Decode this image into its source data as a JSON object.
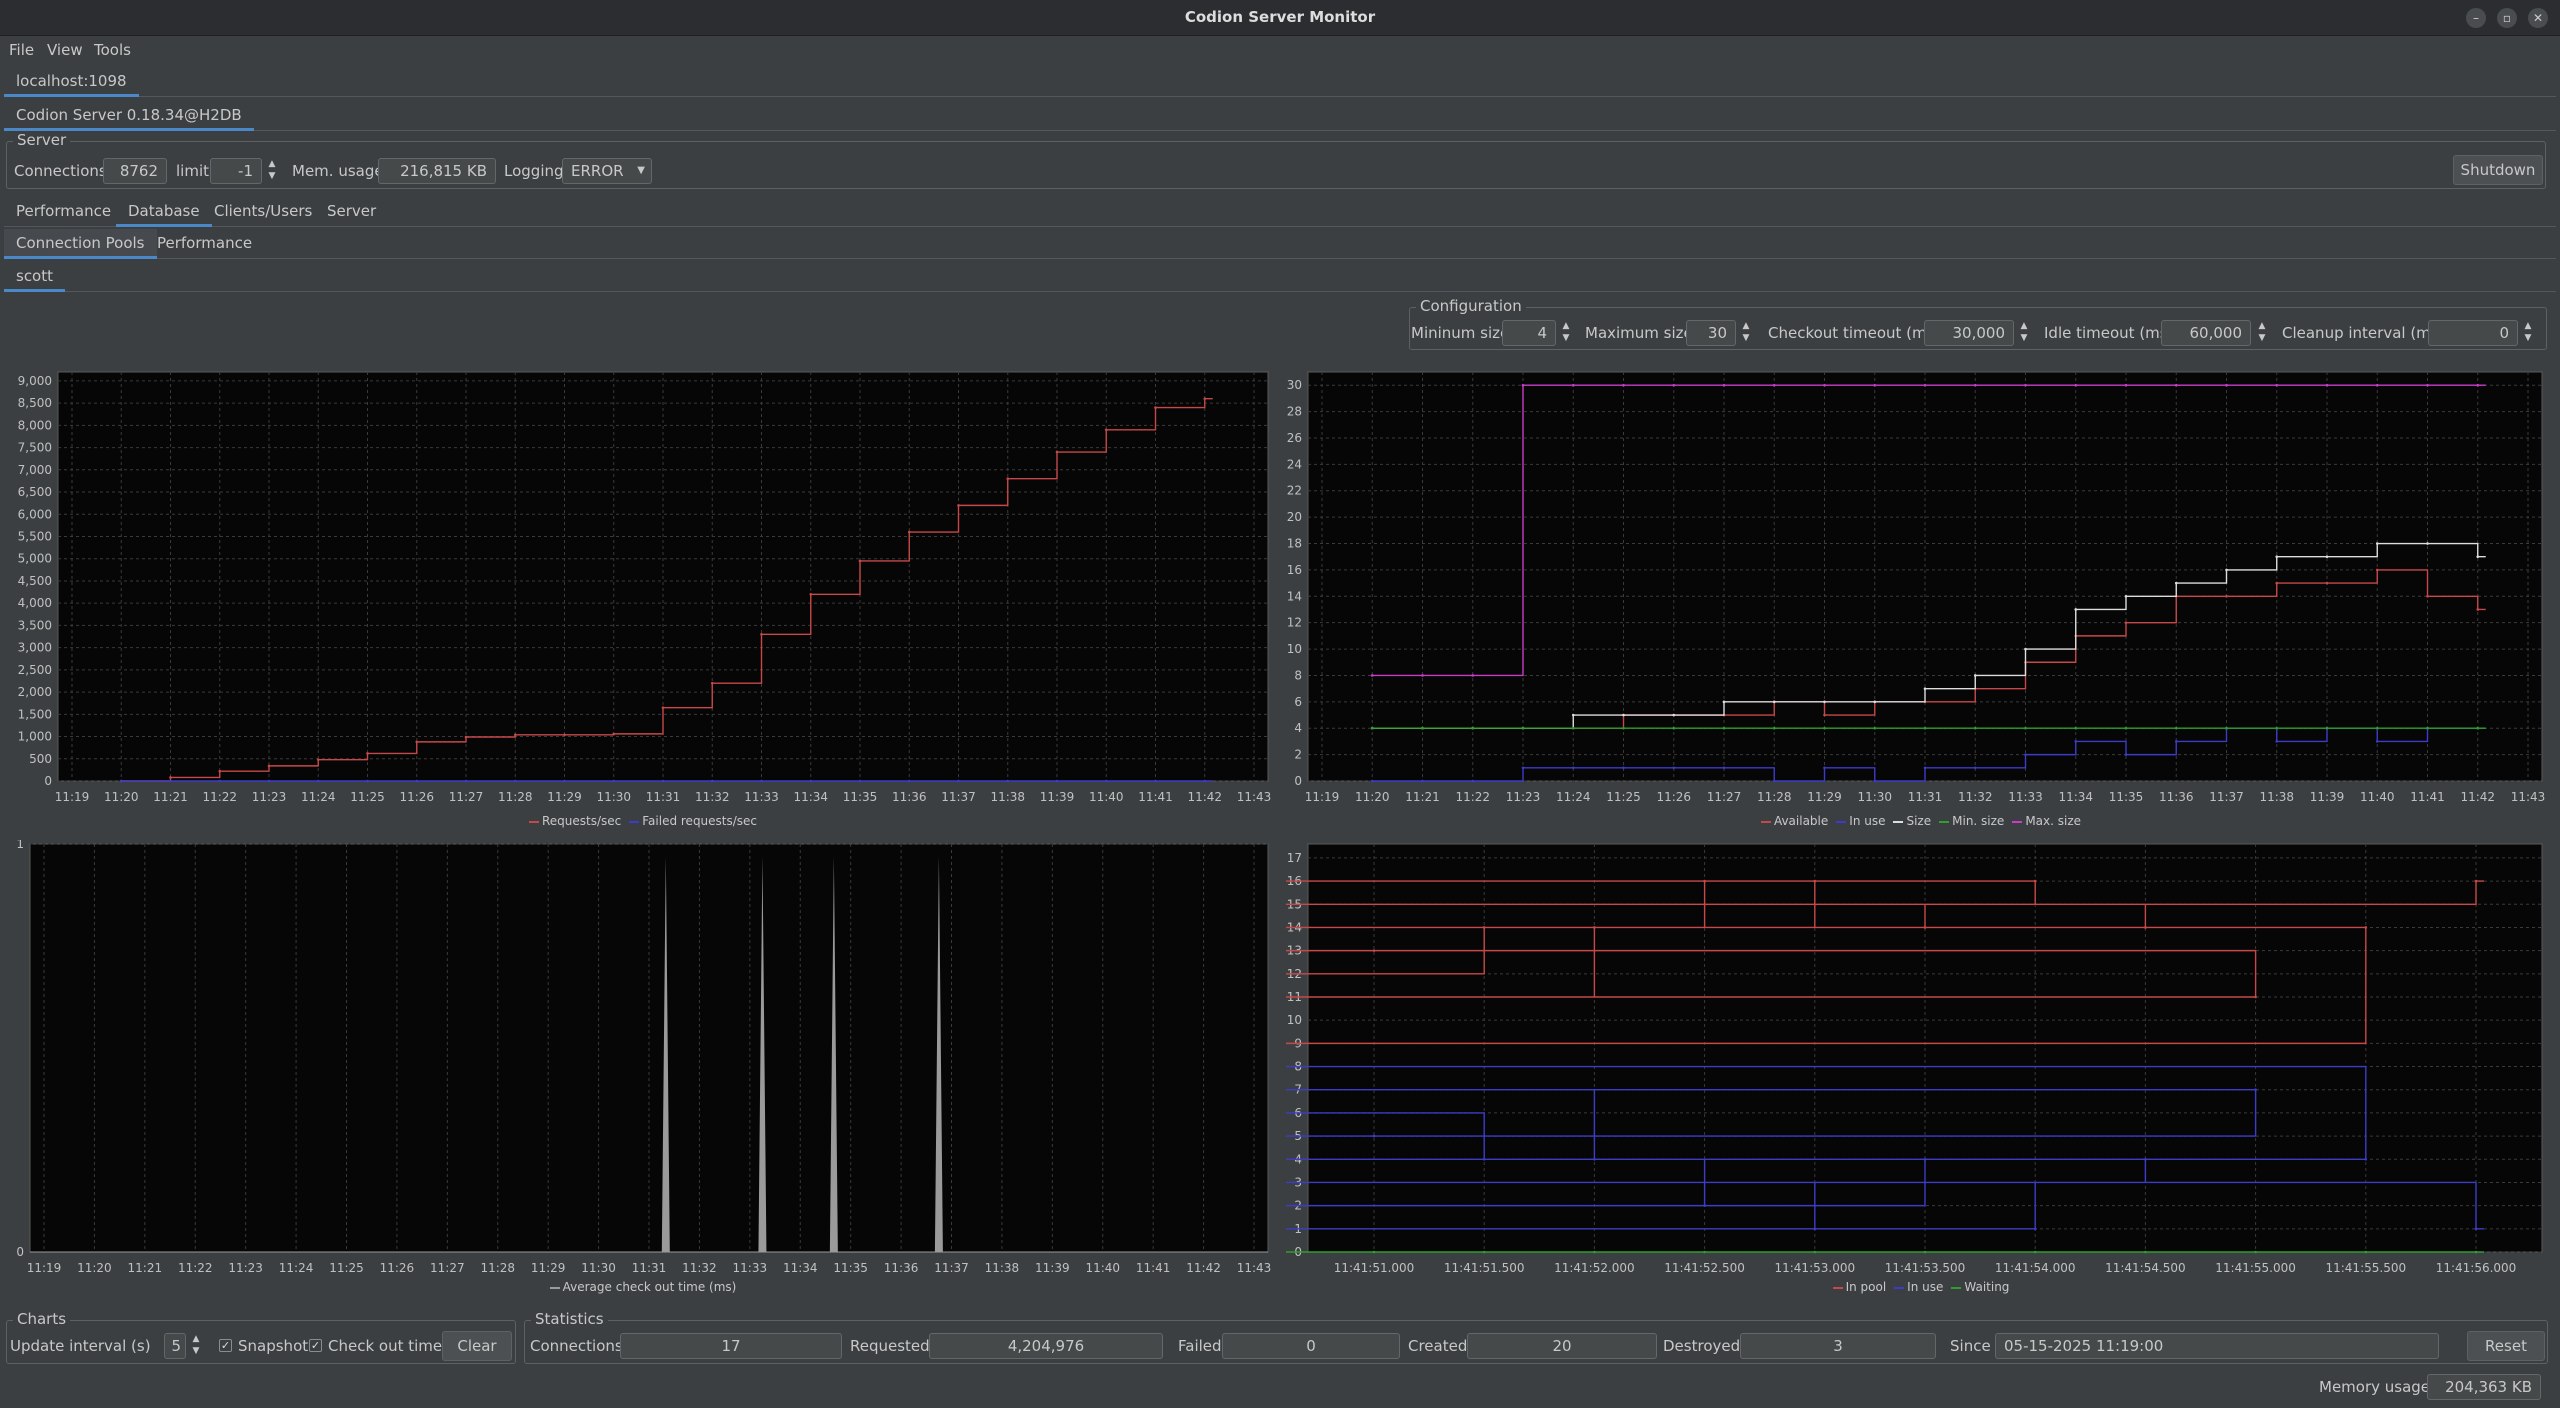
{
  "window": {
    "title": "Codion Server Monitor"
  },
  "menu": [
    "File",
    "View",
    "Tools"
  ],
  "host_tab": "localhost:1098",
  "server_tab": "Codion Server 0.18.34@H2DB",
  "server": {
    "group_label": "Server",
    "connections_label": "Connections",
    "connections": "8762",
    "limit_label": "limit",
    "limit": "-1",
    "mem_label": "Mem. usage",
    "mem": "216,815 KB",
    "logging_label": "Logging",
    "logging": "ERROR",
    "shutdown": "Shutdown"
  },
  "main_tabs": [
    "Performance",
    "Database",
    "Clients/Users",
    "Server"
  ],
  "db_tabs": [
    "Connection Pools",
    "Performance"
  ],
  "pool_tab": "scott",
  "config": {
    "group_label": "Configuration",
    "min_label": "Mininum size",
    "min": "4",
    "max_label": "Maximum size",
    "max": "30",
    "checkout_label": "Checkout timeout (ms)",
    "checkout": "30,000",
    "idle_label": "Idle timeout (ms)",
    "idle": "60,000",
    "cleanup_label": "Cleanup interval (ms)",
    "cleanup": "0"
  },
  "colors": {
    "red": "#c74848",
    "blue": "#3c3cc8",
    "white": "#dddddd",
    "green": "#2e9e2e",
    "magenta": "#c83cc8",
    "gray": "#9a9a9a",
    "plot_bg": "#060606",
    "grid": "#3a3a3a"
  },
  "chart_data": [
    {
      "type": "line",
      "x_ticks": [
        "11:19",
        "11:20",
        "11:21",
        "11:22",
        "11:23",
        "11:24",
        "11:25",
        "11:26",
        "11:27",
        "11:28",
        "11:29",
        "11:30",
        "11:31",
        "11:32",
        "11:33",
        "11:34",
        "11:35",
        "11:36",
        "11:37",
        "11:38",
        "11:39",
        "11:40",
        "11:41",
        "11:42",
        "11:43"
      ],
      "ylim": [
        0,
        9200
      ],
      "y_ticks": [
        "0",
        "500",
        "1,000",
        "1,500",
        "2,000",
        "2,500",
        "3,000",
        "3,500",
        "4,000",
        "4,500",
        "5,000",
        "5,500",
        "6,000",
        "6,500",
        "7,000",
        "7,500",
        "8,000",
        "8,500",
        "9,000"
      ],
      "x": [
        "11:20",
        "11:21",
        "11:22",
        "11:23",
        "11:24",
        "11:25",
        "11:26",
        "11:27",
        "11:28",
        "11:29",
        "11:30",
        "11:31",
        "11:32",
        "11:33",
        "11:34",
        "11:35",
        "11:36",
        "11:37",
        "11:38",
        "11:39",
        "11:40",
        "11:41",
        "11:42"
      ],
      "series": [
        {
          "name": "Requests/sec",
          "color": "red",
          "values": [
            0,
            80,
            220,
            340,
            480,
            620,
            880,
            990,
            1040,
            1040,
            1060,
            1650,
            2200,
            3300,
            4200,
            4950,
            5600,
            6200,
            6800,
            7400,
            7900,
            8400,
            8600
          ]
        },
        {
          "name": "Failed requests/sec",
          "color": "blue",
          "values": [
            0,
            0,
            0,
            0,
            0,
            0,
            0,
            0,
            0,
            0,
            0,
            0,
            0,
            0,
            0,
            0,
            0,
            0,
            0,
            0,
            0,
            0,
            0
          ]
        }
      ]
    },
    {
      "type": "line",
      "x_ticks": [
        "11:19",
        "11:20",
        "11:21",
        "11:22",
        "11:23",
        "11:24",
        "11:25",
        "11:26",
        "11:27",
        "11:28",
        "11:29",
        "11:30",
        "11:31",
        "11:32",
        "11:33",
        "11:34",
        "11:35",
        "11:36",
        "11:37",
        "11:38",
        "11:39",
        "11:40",
        "11:41",
        "11:42",
        "11:43"
      ],
      "ylim": [
        0,
        31
      ],
      "y_ticks": [
        "0",
        "2",
        "4",
        "6",
        "8",
        "10",
        "12",
        "14",
        "16",
        "18",
        "20",
        "22",
        "24",
        "26",
        "28",
        "30"
      ],
      "x": [
        "11:20",
        "11:21",
        "11:22",
        "11:23",
        "11:24",
        "11:25",
        "11:26",
        "11:27",
        "11:28",
        "11:29",
        "11:30",
        "11:31",
        "11:32",
        "11:33",
        "11:34",
        "11:35",
        "11:36",
        "11:37",
        "11:38",
        "11:39",
        "11:40",
        "11:41",
        "11:42"
      ],
      "series": [
        {
          "name": "Available",
          "color": "red",
          "values": [
            4,
            4,
            4,
            4,
            4,
            5,
            5,
            5,
            6,
            5,
            6,
            6,
            7,
            9,
            11,
            12,
            14,
            14,
            15,
            15,
            16,
            14,
            13
          ]
        },
        {
          "name": "In use",
          "color": "blue",
          "values": [
            0,
            0,
            0,
            1,
            1,
            1,
            1,
            1,
            0,
            1,
            0,
            1,
            1,
            2,
            3,
            2,
            3,
            4,
            3,
            4,
            3,
            4,
            4
          ]
        },
        {
          "name": "Size",
          "color": "white",
          "values": [
            4,
            4,
            4,
            4,
            5,
            5,
            5,
            6,
            6,
            6,
            6,
            7,
            8,
            10,
            13,
            14,
            15,
            16,
            17,
            17,
            18,
            18,
            17
          ]
        },
        {
          "name": "Min. size",
          "color": "green",
          "values": [
            4,
            4,
            4,
            4,
            4,
            4,
            4,
            4,
            4,
            4,
            4,
            4,
            4,
            4,
            4,
            4,
            4,
            4,
            4,
            4,
            4,
            4,
            4
          ]
        },
        {
          "name": "Max. size",
          "color": "magenta",
          "values": [
            8,
            8,
            8,
            30,
            30,
            30,
            30,
            30,
            30,
            30,
            30,
            30,
            30,
            30,
            30,
            30,
            30,
            30,
            30,
            30,
            30,
            30,
            30
          ]
        }
      ]
    },
    {
      "type": "area",
      "x_ticks": [
        "11:19",
        "11:20",
        "11:21",
        "11:22",
        "11:23",
        "11:24",
        "11:25",
        "11:26",
        "11:27",
        "11:28",
        "11:29",
        "11:30",
        "11:31",
        "11:32",
        "11:33",
        "11:34",
        "11:35",
        "11:36",
        "11:37",
        "11:38",
        "11:39",
        "11:40",
        "11:41",
        "11:42",
        "11:43"
      ],
      "ylim": [
        0,
        1
      ],
      "y_ticks": [
        "0",
        "1"
      ],
      "spikes": [
        {
          "x": "11:31:20",
          "y": 0.97
        },
        {
          "x": "11:33:15",
          "y": 0.97
        },
        {
          "x": "11:34:40",
          "y": 0.97
        },
        {
          "x": "11:36:45",
          "y": 0.97
        }
      ],
      "series": [
        {
          "name": "Average check out time (ms)",
          "color": "gray"
        }
      ]
    },
    {
      "type": "line",
      "x_ticks": [
        "11:41:51.000",
        "11:41:51.500",
        "11:41:52.000",
        "11:41:52.500",
        "11:41:53.000",
        "11:41:53.500",
        "11:41:54.000",
        "11:41:54.500",
        "11:41:55.000",
        "11:41:55.500",
        "11:41:56.000"
      ],
      "ylim": [
        0,
        17.6
      ],
      "y_ticks": [
        "0",
        "1",
        "2",
        "3",
        "4",
        "5",
        "6",
        "7",
        "8",
        "9",
        "10",
        "11",
        "12",
        "13",
        "14",
        "15",
        "16",
        "17"
      ],
      "x": [
        "11:41:51.000",
        "11:41:51.250",
        "11:41:51.500",
        "11:41:51.750",
        "11:41:52.000",
        "11:41:52.250",
        "11:41:52.500",
        "11:41:52.750",
        "11:41:53.000",
        "11:41:53.250",
        "11:41:53.500",
        "11:41:53.750",
        "11:41:54.000",
        "11:41:54.250",
        "11:41:54.500",
        "11:41:54.750",
        "11:41:55.000",
        "11:41:55.250",
        "11:41:55.500",
        "11:41:55.750",
        "11:41:56.000"
      ],
      "series": [
        {
          "name": "In pool",
          "color": "red",
          "values": [
            13,
            12,
            14,
            11,
            14,
            14,
            16,
            14,
            16,
            15,
            14,
            15,
            16,
            15,
            14,
            13,
            11,
            9,
            14,
            15,
            16
          ]
        },
        {
          "name": "In use",
          "color": "blue",
          "values": [
            5,
            6,
            4,
            7,
            4,
            4,
            2,
            3,
            1,
            2,
            4,
            3,
            1,
            3,
            4,
            5,
            7,
            8,
            4,
            3,
            1
          ]
        },
        {
          "name": "Waiting",
          "color": "green",
          "values": [
            0,
            0,
            0,
            0,
            0,
            0,
            0,
            0,
            0,
            0,
            0,
            0,
            0,
            0,
            0,
            0,
            0,
            0,
            0,
            0,
            0
          ]
        }
      ]
    }
  ],
  "charts_group": {
    "group_label": "Charts",
    "interval_label": "Update interval (s)",
    "interval": "5",
    "snapshot_label": "Snapshot",
    "checkout_label": "Check out times",
    "clear": "Clear"
  },
  "statistics": {
    "group_label": "Statistics",
    "connections_label": "Connections",
    "connections": "17",
    "requested_label": "Requested",
    "requested": "4,204,976",
    "failed_label": "Failed",
    "failed": "0",
    "created_label": "Created",
    "created": "20",
    "destroyed_label": "Destroyed",
    "destroyed": "3",
    "since_label": "Since",
    "since": "05-15-2025 11:19:00",
    "reset": "Reset"
  },
  "memory": {
    "label": "Memory usage:",
    "value": "204,363 KB"
  }
}
